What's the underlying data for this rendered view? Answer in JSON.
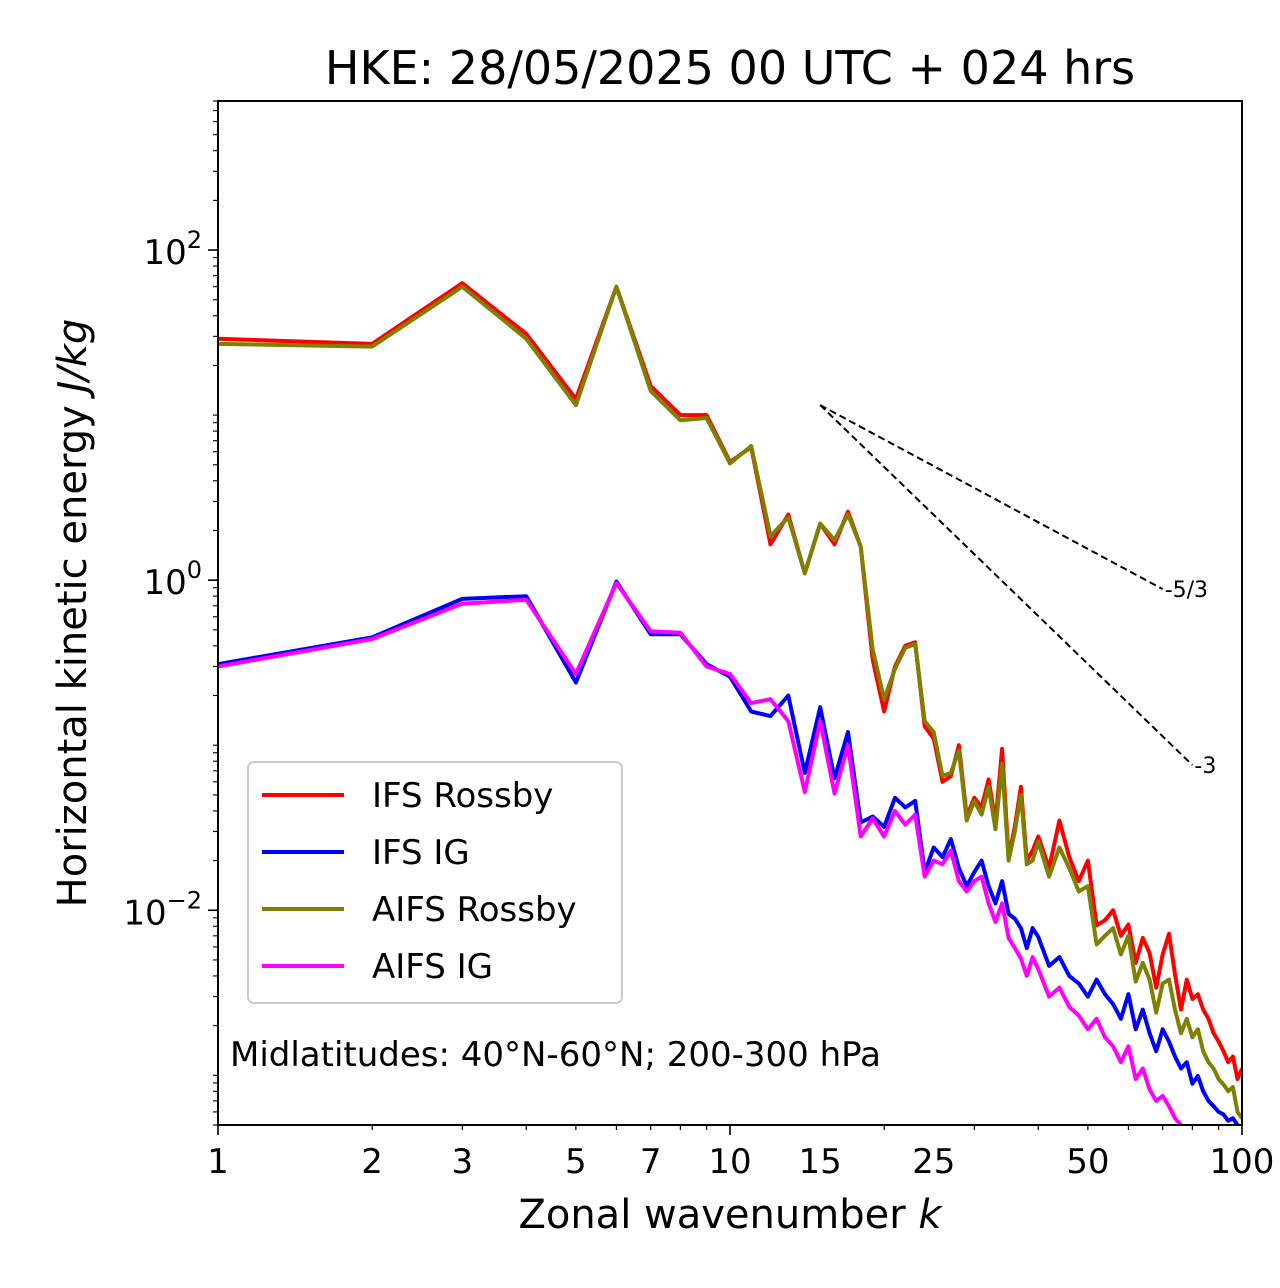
{
  "chart_data": {
    "type": "line",
    "title": "HKE: 28/05/2025 00 UTC + 024 hrs",
    "xlabel": "Zonal wavenumber k",
    "ylabel": "Horizontal kinetic energy J/kg",
    "xscale": "log",
    "yscale": "log",
    "xlim": [
      1,
      100
    ],
    "ylim": [
      0.0005,
      800
    ],
    "xticks": [
      1,
      2,
      3,
      5,
      7,
      10,
      15,
      25,
      50,
      100
    ],
    "xtick_labels": [
      "1",
      "2",
      "3",
      "5",
      "7",
      "10",
      "15",
      "25",
      "50",
      "100"
    ],
    "yticks": [
      0.01,
      1,
      100
    ],
    "ytick_labels": [
      {
        "base": "10",
        "exp": "−2"
      },
      {
        "base": "10",
        "exp": "0"
      },
      {
        "base": "10",
        "exp": "2"
      }
    ],
    "legend_position": "lower-left",
    "annotation": "Midlatitudes: 40°N-60°N; 200-300 hPa",
    "reference_lines": [
      {
        "label": "-5/3",
        "slope": -1.6667,
        "x": [
          15,
          70
        ],
        "y0": 11.5
      },
      {
        "label": "-3",
        "slope": -3,
        "x": [
          15,
          80
        ],
        "y0": 11.5
      }
    ],
    "series": [
      {
        "name": "IFS Rossby",
        "color": "#ff0000",
        "x": [
          1,
          2,
          3,
          4,
          5,
          6,
          7,
          8,
          9,
          10,
          11,
          12,
          13,
          14,
          15,
          16,
          17,
          18,
          19,
          20,
          21,
          22,
          23,
          24,
          25,
          26,
          27,
          28,
          29,
          30,
          31,
          32,
          33,
          34,
          35,
          36,
          37,
          38,
          39,
          40,
          42,
          44,
          46,
          48,
          50,
          52,
          54,
          56,
          58,
          60,
          62,
          64,
          66,
          68,
          70,
          72,
          74,
          76,
          78,
          80,
          82,
          84,
          86,
          88,
          90,
          92,
          94,
          96,
          98,
          100
        ],
        "y": [
          29,
          27,
          63,
          31,
          12.5,
          60,
          15,
          10,
          10,
          5.2,
          6.4,
          1.65,
          2.5,
          1.1,
          2.2,
          1.65,
          2.6,
          1.6,
          0.33,
          0.16,
          0.3,
          0.4,
          0.42,
          0.13,
          0.11,
          0.06,
          0.065,
          0.1,
          0.037,
          0.048,
          0.042,
          0.062,
          0.034,
          0.095,
          0.021,
          0.032,
          0.056,
          0.02,
          0.023,
          0.028,
          0.018,
          0.035,
          0.021,
          0.015,
          0.02,
          0.0081,
          0.0087,
          0.01,
          0.007,
          0.0082,
          0.0048,
          0.0068,
          0.0055,
          0.0034,
          0.0054,
          0.0072,
          0.0041,
          0.0025,
          0.0038,
          0.0029,
          0.0031,
          0.0025,
          0.0022,
          0.0018,
          0.0016,
          0.0014,
          0.0012,
          0.0013,
          0.00095,
          0.0011
        ]
      },
      {
        "name": "IFS IG",
        "color": "#0000ff",
        "x": [
          1,
          2,
          3,
          4,
          5,
          6,
          7,
          8,
          9,
          10,
          11,
          12,
          13,
          14,
          15,
          16,
          17,
          18,
          19,
          20,
          21,
          22,
          23,
          24,
          25,
          26,
          27,
          28,
          29,
          30,
          31,
          32,
          33,
          34,
          35,
          36,
          37,
          38,
          39,
          40,
          42,
          44,
          46,
          48,
          50,
          52,
          54,
          56,
          58,
          60,
          62,
          64,
          66,
          68,
          70,
          72,
          74,
          76,
          78,
          80,
          82,
          84,
          86,
          88,
          90,
          92,
          94,
          96,
          98,
          100
        ],
        "y": [
          0.31,
          0.45,
          0.77,
          0.8,
          0.24,
          0.98,
          0.47,
          0.47,
          0.31,
          0.26,
          0.16,
          0.15,
          0.2,
          0.068,
          0.17,
          0.063,
          0.12,
          0.034,
          0.037,
          0.032,
          0.048,
          0.042,
          0.046,
          0.017,
          0.024,
          0.021,
          0.027,
          0.018,
          0.014,
          0.017,
          0.02,
          0.014,
          0.011,
          0.015,
          0.0095,
          0.0089,
          0.0078,
          0.0059,
          0.0078,
          0.0069,
          0.0046,
          0.0052,
          0.004,
          0.0036,
          0.003,
          0.0038,
          0.0031,
          0.0027,
          0.0022,
          0.0031,
          0.0019,
          0.0025,
          0.0018,
          0.0014,
          0.0019,
          0.0016,
          0.0013,
          0.0011,
          0.0012,
          0.00089,
          0.00099,
          0.0008,
          0.0007,
          0.00065,
          0.0006,
          0.00058,
          0.00053,
          0.00055,
          0.0005,
          0.00048
        ]
      },
      {
        "name": "AIFS Rossby",
        "color": "#808000",
        "x": [
          1,
          2,
          3,
          4,
          5,
          6,
          7,
          8,
          9,
          10,
          11,
          12,
          13,
          14,
          15,
          16,
          17,
          18,
          19,
          20,
          21,
          22,
          23,
          24,
          25,
          26,
          27,
          28,
          29,
          30,
          31,
          32,
          33,
          34,
          35,
          36,
          37,
          38,
          39,
          40,
          42,
          44,
          46,
          48,
          50,
          52,
          54,
          56,
          58,
          60,
          62,
          64,
          66,
          68,
          70,
          72,
          74,
          76,
          78,
          80,
          82,
          84,
          86,
          88,
          90,
          92,
          94,
          96,
          98,
          100
        ],
        "y": [
          27,
          26,
          60,
          29,
          11.5,
          60,
          14,
          9.3,
          9.6,
          5.1,
          6.5,
          1.85,
          2.4,
          1.1,
          2.2,
          1.75,
          2.5,
          1.6,
          0.38,
          0.19,
          0.29,
          0.39,
          0.41,
          0.14,
          0.12,
          0.065,
          0.068,
          0.093,
          0.035,
          0.046,
          0.038,
          0.056,
          0.031,
          0.077,
          0.02,
          0.03,
          0.05,
          0.019,
          0.02,
          0.026,
          0.016,
          0.024,
          0.018,
          0.013,
          0.014,
          0.0062,
          0.007,
          0.0078,
          0.0054,
          0.007,
          0.0037,
          0.0048,
          0.0038,
          0.0024,
          0.0036,
          0.0038,
          0.0025,
          0.0018,
          0.0022,
          0.0017,
          0.0019,
          0.0014,
          0.0012,
          0.0011,
          0.00095,
          0.00088,
          0.0008,
          0.00085,
          0.0006,
          0.00055
        ]
      },
      {
        "name": "AIFS IG",
        "color": "#ff00ff",
        "x": [
          1,
          2,
          3,
          4,
          5,
          6,
          7,
          8,
          9,
          10,
          11,
          12,
          13,
          14,
          15,
          16,
          17,
          18,
          19,
          20,
          21,
          22,
          23,
          24,
          25,
          26,
          27,
          28,
          29,
          30,
          31,
          32,
          33,
          34,
          35,
          36,
          37,
          38,
          39,
          40,
          42,
          44,
          46,
          48,
          50,
          52,
          54,
          56,
          58,
          60,
          62,
          64,
          66,
          68,
          70,
          72,
          74,
          76,
          78,
          80,
          82,
          84,
          86,
          88,
          90,
          92,
          94,
          96,
          98,
          100
        ],
        "y": [
          0.3,
          0.44,
          0.72,
          0.76,
          0.27,
          0.96,
          0.49,
          0.48,
          0.3,
          0.27,
          0.18,
          0.19,
          0.14,
          0.052,
          0.14,
          0.051,
          0.1,
          0.028,
          0.036,
          0.028,
          0.04,
          0.033,
          0.038,
          0.016,
          0.02,
          0.019,
          0.023,
          0.015,
          0.013,
          0.015,
          0.016,
          0.011,
          0.0085,
          0.011,
          0.0068,
          0.0059,
          0.0051,
          0.004,
          0.0052,
          0.0044,
          0.003,
          0.0034,
          0.0026,
          0.0023,
          0.0019,
          0.0022,
          0.0017,
          0.0015,
          0.0012,
          0.0015,
          0.00095,
          0.0011,
          0.00082,
          0.0007,
          0.00075,
          0.00065,
          0.00055,
          0.0005,
          0.00048,
          0.00045,
          0.00042,
          0.0004,
          0.00038,
          0.00037,
          0.00035,
          0.00034,
          0.00033,
          0.00032,
          0.00031,
          0.0003
        ]
      }
    ]
  }
}
